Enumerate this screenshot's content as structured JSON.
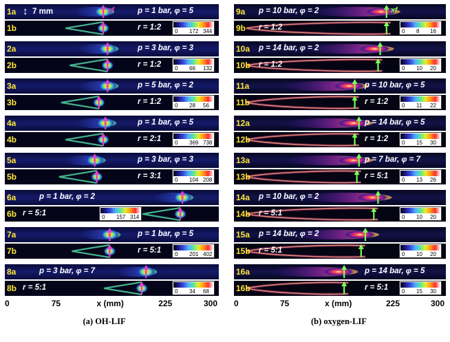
{
  "colors": {
    "label_text": "#ffe833",
    "condition_text": "#ffffff",
    "oh_marker": "#e040c8",
    "oxygen_marker": "#7cff5a",
    "strip_bg": "#000018"
  },
  "colormap": [
    "#000010",
    "#1a1a8c",
    "#3a4bd8",
    "#4fb0ff",
    "#56e6a0",
    "#e8ec2a",
    "#ff9a1a",
    "#ff2e2e",
    "#ffffff"
  ],
  "panel_a": {
    "caption": "(a) OH-LIF",
    "axis_ticks": [
      "0",
      "75",
      "150",
      "225",
      "300"
    ],
    "axis_unit": "x (mm)",
    "scale_note": "7 mm",
    "marker_label": "xf",
    "rows": [
      {
        "label": "1a",
        "condition": "p = 1 bar, φ = 5",
        "flame": {
          "type": "a",
          "x": 0.46
        }
      },
      {
        "label": "1b",
        "condition": "r = 1:2",
        "colorbar": [
          "0",
          "172",
          "344"
        ],
        "flame": {
          "type": "b",
          "x": 0.46
        }
      },
      {
        "label": "2a",
        "condition": "p = 3 bar, φ = 3",
        "flame": {
          "type": "a",
          "x": 0.48
        }
      },
      {
        "label": "2b",
        "condition": "r = 1:2",
        "colorbar": [
          "0",
          "66",
          "132"
        ],
        "flame": {
          "type": "b",
          "x": 0.48
        }
      },
      {
        "label": "3a",
        "condition": "p = 5 bar, φ = 2",
        "flame": {
          "type": "a",
          "x": 0.48
        }
      },
      {
        "label": "3b",
        "condition": "r = 1:2",
        "colorbar": [
          "0",
          "28",
          "56"
        ],
        "flame": {
          "type": "b",
          "x": 0.44
        }
      },
      {
        "label": "4a",
        "condition": "p = 1 bar, φ = 5",
        "flame": {
          "type": "a",
          "x": 0.47
        }
      },
      {
        "label": "4b",
        "condition": "r = 2:1",
        "colorbar": [
          "0",
          "369",
          "738"
        ],
        "flame": {
          "type": "b",
          "x": 0.46
        }
      },
      {
        "label": "5a",
        "condition": "p = 3 bar, φ = 3",
        "flame": {
          "type": "a",
          "x": 0.42
        }
      },
      {
        "label": "5b",
        "condition": "r = 3:1",
        "colorbar": [
          "0",
          "104",
          "208"
        ],
        "flame": {
          "type": "b",
          "x": 0.43
        }
      },
      {
        "label": "6a",
        "condition": "p = 1 bar, φ = 2",
        "flame": {
          "type": "a",
          "x": 0.83
        }
      },
      {
        "label": "6b",
        "condition": "r = 5:1",
        "colorbar": [
          "0",
          "157",
          "314"
        ],
        "flame": {
          "type": "b",
          "x": 0.82
        }
      },
      {
        "label": "7a",
        "condition": "p = 1 bar, φ = 5",
        "flame": {
          "type": "a",
          "x": 0.49
        }
      },
      {
        "label": "7b",
        "condition": "r = 5:1",
        "colorbar": [
          "0",
          "201",
          "402"
        ],
        "flame": {
          "type": "b",
          "x": 0.49
        }
      },
      {
        "label": "8a",
        "condition": "p = 3 bar, φ = 7",
        "flame": {
          "type": "a",
          "x": 0.66
        }
      },
      {
        "label": "8b",
        "condition": "r = 5:1",
        "colorbar": [
          "0",
          "34",
          "68"
        ],
        "flame": {
          "type": "b",
          "x": 0.64
        }
      }
    ]
  },
  "panel_b": {
    "caption": "(b) oxygen-LIF",
    "axis_ticks": [
      "0",
      "75",
      "150",
      "225",
      "300"
    ],
    "axis_unit": "x (mm)",
    "marker_label": "xf",
    "rows": [
      {
        "label": "9a",
        "condition": "p = 10 bar, φ = 2",
        "flame": {
          "type": "a",
          "x": 0.72
        }
      },
      {
        "label": "9b",
        "condition": "r = 1:2",
        "colorbar": [
          "0",
          "8",
          "16"
        ],
        "flame": {
          "type": "b",
          "x": 0.72
        }
      },
      {
        "label": "10a",
        "condition": "p = 14 bar, φ = 2",
        "flame": {
          "type": "a",
          "x": 0.69
        }
      },
      {
        "label": "10b",
        "condition": "r = 1:2",
        "colorbar": [
          "0",
          "10",
          "20"
        ],
        "flame": {
          "type": "b",
          "x": 0.68
        }
      },
      {
        "label": "11a",
        "condition": "p = 10 bar, φ = 5",
        "flame": {
          "type": "a",
          "x": 0.57
        }
      },
      {
        "label": "11b",
        "condition": "r = 1:2",
        "colorbar": [
          "0",
          "11",
          "22"
        ],
        "flame": {
          "type": "b",
          "x": 0.57
        }
      },
      {
        "label": "12a",
        "condition": "p = 14 bar, φ = 5",
        "flame": {
          "type": "a",
          "x": 0.59
        }
      },
      {
        "label": "12b",
        "condition": "r = 1:2",
        "colorbar": [
          "0",
          "15",
          "30"
        ],
        "flame": {
          "type": "b",
          "x": 0.57
        }
      },
      {
        "label": "13a",
        "condition": "p = 7 bar, φ = 7",
        "flame": {
          "type": "a",
          "x": 0.59
        }
      },
      {
        "label": "13b",
        "condition": "r = 5:1",
        "colorbar": [
          "0",
          "13",
          "26"
        ],
        "flame": {
          "type": "b",
          "x": 0.58
        }
      },
      {
        "label": "14a",
        "condition": "p = 10 bar, φ = 2",
        "flame": {
          "type": "a",
          "x": 0.68
        }
      },
      {
        "label": "14b",
        "condition": "r = 5:1",
        "colorbar": [
          "0",
          "10",
          "20"
        ],
        "flame": {
          "type": "b",
          "x": 0.66
        }
      },
      {
        "label": "15a",
        "condition": "p = 14 bar, φ = 2",
        "flame": {
          "type": "a",
          "x": 0.62
        }
      },
      {
        "label": "15b",
        "condition": "r = 5:1",
        "colorbar": [
          "0",
          "10",
          "20"
        ],
        "flame": {
          "type": "b",
          "x": 0.6
        }
      },
      {
        "label": "16a",
        "condition": "p = 14 bar, φ = 5",
        "flame": {
          "type": "a",
          "x": 0.52
        }
      },
      {
        "label": "16b",
        "condition": "r = 5:1",
        "colorbar": [
          "0",
          "15",
          "30"
        ],
        "flame": {
          "type": "b",
          "x": 0.52
        }
      }
    ]
  }
}
